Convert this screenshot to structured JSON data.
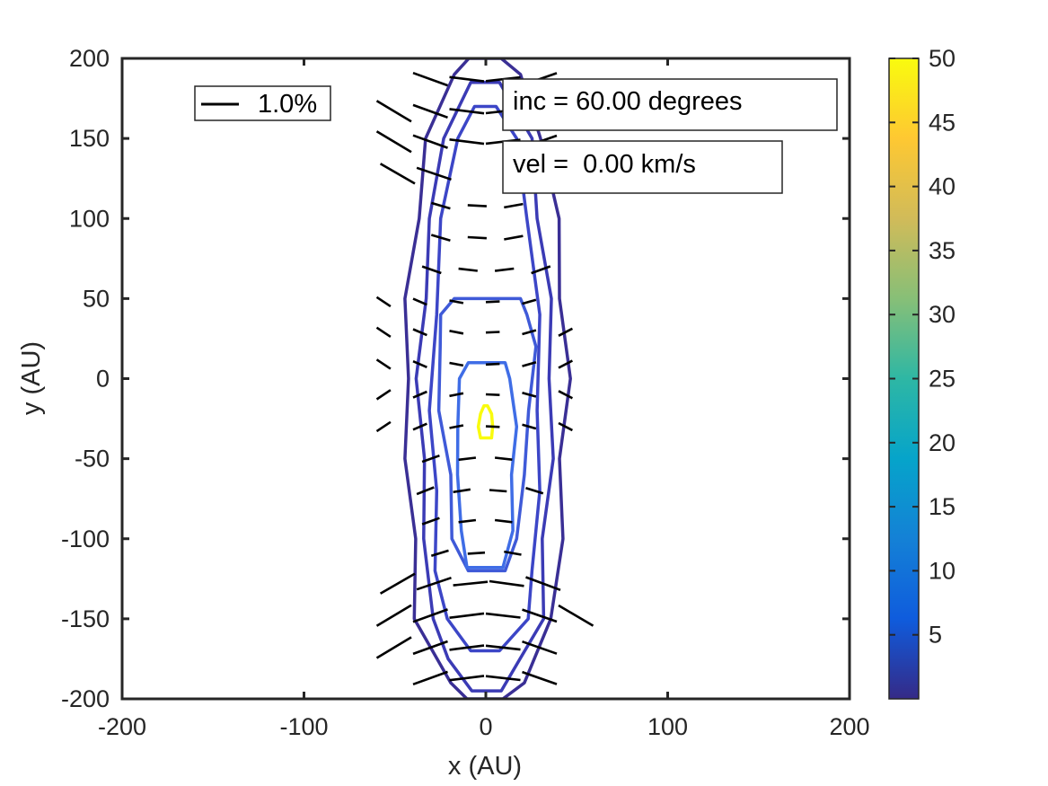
{
  "chart_data": {
    "type": "contour",
    "xlabel": "x (AU)",
    "ylabel": "y (AU)",
    "xlim": [
      -200,
      200
    ],
    "ylim": [
      -200,
      200
    ],
    "xticks": [
      -200,
      -100,
      0,
      100,
      200
    ],
    "yticks": [
      -200,
      -150,
      -100,
      -50,
      0,
      50,
      100,
      150,
      200
    ],
    "colorbar": {
      "colormap": "parula",
      "range": [
        0,
        50
      ],
      "ticks": [
        5,
        10,
        15,
        20,
        25,
        30,
        35,
        40,
        45,
        50
      ],
      "stops": [
        "#352a87",
        "#0f5cdd",
        "#1481d6",
        "#06a4ca",
        "#2eb7a4",
        "#87bf77",
        "#d1bb59",
        "#fec832",
        "#f9fb0e"
      ]
    },
    "annotations": {
      "inc": "inc = 60.00 degrees",
      "vel": "vel =  0.00 km/s"
    },
    "legend": {
      "label": "1.0%",
      "placement": "top-left"
    },
    "contours": [
      {
        "level": 1,
        "color": "#3a2f95",
        "half_widths": [
          [
            -200,
            10
          ],
          [
            -190,
            20
          ],
          [
            -150,
            38
          ],
          [
            -100,
            40
          ],
          [
            -50,
            43
          ],
          [
            0,
            44
          ],
          [
            50,
            43
          ],
          [
            100,
            38
          ],
          [
            150,
            32
          ],
          [
            190,
            18
          ],
          [
            200,
            9
          ]
        ]
      },
      {
        "level": 3,
        "color": "#3b3bb5",
        "half_widths": [
          [
            -195,
            8
          ],
          [
            -175,
            20
          ],
          [
            -150,
            30
          ],
          [
            -100,
            33
          ],
          [
            -50,
            35
          ],
          [
            0,
            37
          ],
          [
            50,
            34
          ],
          [
            100,
            30
          ],
          [
            150,
            24
          ],
          [
            185,
            8
          ]
        ]
      },
      {
        "level": 5,
        "color": "#3c46c7",
        "half_widths": [
          [
            -170,
            8
          ],
          [
            -150,
            22
          ],
          [
            -120,
            27
          ],
          [
            -70,
            28
          ],
          [
            -20,
            30
          ],
          [
            40,
            28
          ],
          [
            100,
            24
          ],
          [
            150,
            16
          ],
          [
            170,
            6
          ]
        ]
      },
      {
        "level": 9,
        "color": "#3f5ad8",
        "half_widths": [
          [
            -120,
            10
          ],
          [
            -100,
            18
          ],
          [
            -60,
            20
          ],
          [
            -20,
            25
          ],
          [
            20,
            26
          ],
          [
            40,
            24
          ],
          [
            50,
            18
          ]
        ]
      },
      {
        "level": 12,
        "color": "#3f6de6",
        "half_widths": [
          [
            -118,
            10
          ],
          [
            -95,
            14
          ],
          [
            -60,
            15
          ],
          [
            -30,
            16
          ],
          [
            0,
            14
          ],
          [
            10,
            10
          ]
        ]
      },
      {
        "level": 45,
        "color": "#f9fb0e",
        "half_widths": [
          [
            -37,
            3
          ],
          [
            -30,
            4
          ],
          [
            -22,
            3
          ],
          [
            -17,
            1
          ]
        ]
      }
    ],
    "polarization_vectors": {
      "rows": [
        {
          "y": 187,
          "x_range": [
            -40,
            40
          ],
          "fraction": 1.0
        },
        {
          "y": 167,
          "x_range": [
            -60,
            40
          ],
          "fraction": 1.0
        },
        {
          "y": 148,
          "x_range": [
            -60,
            40
          ],
          "fraction": 1.0
        },
        {
          "y": 128,
          "x_range": [
            -58,
            0
          ],
          "fraction": 1.0
        },
        {
          "y": 108,
          "x_range": [
            -30,
            30
          ],
          "fraction": 0.55
        },
        {
          "y": 88,
          "x_range": [
            -30,
            30
          ],
          "fraction": 0.55
        },
        {
          "y": 68,
          "x_range": [
            -35,
            40
          ],
          "fraction": 0.55
        },
        {
          "y": 48,
          "x_range": [
            -60,
            30
          ],
          "fraction": 0.4
        },
        {
          "y": 29,
          "x_range": [
            -60,
            60
          ],
          "fraction": 0.4
        },
        {
          "y": 9,
          "x_range": [
            -60,
            60
          ],
          "fraction": 0.4
        },
        {
          "y": -10,
          "x_range": [
            -60,
            60
          ],
          "fraction": 0.4
        },
        {
          "y": -30,
          "x_range": [
            -60,
            60
          ],
          "fraction": 0.4
        },
        {
          "y": -50,
          "x_range": [
            -35,
            30
          ],
          "fraction": 0.5
        },
        {
          "y": -70,
          "x_range": [
            -38,
            35
          ],
          "fraction": 0.5
        },
        {
          "y": -89,
          "x_range": [
            -35,
            30
          ],
          "fraction": 0.5
        },
        {
          "y": -109,
          "x_range": [
            -30,
            30
          ],
          "fraction": 0.5
        },
        {
          "y": -128,
          "x_range": [
            -58,
            58
          ],
          "fraction": 1.0
        },
        {
          "y": -148,
          "x_range": [
            -60,
            60
          ],
          "fraction": 1.0
        },
        {
          "y": -168,
          "x_range": [
            -60,
            40
          ],
          "fraction": 1.0
        },
        {
          "y": -187,
          "x_range": [
            -40,
            40
          ],
          "fraction": 1.0
        }
      ]
    }
  }
}
